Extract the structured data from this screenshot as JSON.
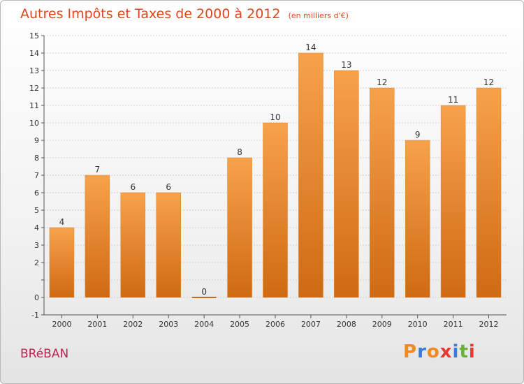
{
  "header": {
    "title": "Autres Impôts et Taxes de 2000 à 2012",
    "unit": "(en milliers d'€)"
  },
  "footer": {
    "place": "BRéBAN",
    "logo": "Proxiti",
    "logo_colors": [
      "#f08a1c",
      "#3a7bd5",
      "#f08a1c",
      "#e53b2f",
      "#3a7bd5",
      "#67b33a",
      "#e53b2f"
    ]
  },
  "colors": {
    "bar_light": "#f7a24a",
    "bar_dark": "#cf6a14",
    "title": "#e0461e",
    "grid": "#d0d0d0"
  },
  "chart_data": {
    "type": "bar",
    "title": "Autres Impôts et Taxes de 2000 à 2012",
    "unit": "(en milliers d'€)",
    "categories": [
      "2000",
      "2001",
      "2002",
      "2003",
      "2004",
      "2005",
      "2006",
      "2007",
      "2008",
      "2009",
      "2010",
      "2011",
      "2012"
    ],
    "values": [
      4,
      7,
      6,
      6,
      0,
      8,
      10,
      14,
      13,
      12,
      9,
      11,
      12
    ],
    "ylim": [
      -1,
      15
    ],
    "yticks": [
      -1,
      0,
      1,
      2,
      3,
      4,
      5,
      6,
      7,
      8,
      9,
      10,
      11,
      12,
      13,
      14,
      15
    ],
    "ytick_labels": [
      "-1",
      "0",
      "",
      "2",
      "3",
      "4",
      "5",
      "6",
      "7",
      "8",
      "9",
      "10",
      "11",
      "12",
      "13",
      "14",
      "15"
    ],
    "grid": true
  }
}
